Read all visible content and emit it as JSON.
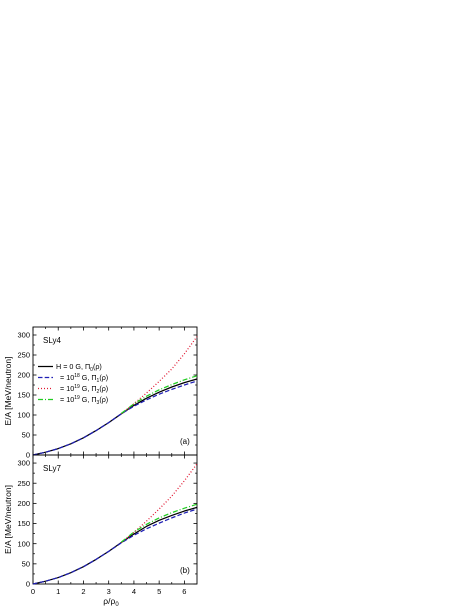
{
  "chart_data": [
    {
      "type": "line",
      "panel_tag": "(a)",
      "model_label": "SLy4",
      "ylabel": "E/A [MeV/neutron]",
      "xlim": [
        0,
        6.5
      ],
      "ylim": [
        0,
        320
      ],
      "x_ticks": [
        "0",
        "1",
        "2",
        "3",
        "4",
        "5",
        "6"
      ],
      "y_ticks": [
        "0",
        "50",
        "100",
        "150",
        "200",
        "250",
        "300"
      ],
      "legend": {
        "placement": "upper-left",
        "entries": [
          {
            "prefix": "H = 0 G, ",
            "pi": "Π",
            "sub": "0",
            "suffix": "(ρ)"
          },
          {
            "prefix": "= 10",
            "exp": "18",
            "mid": " G, Π",
            "sub": "1",
            "suffix": "(ρ)"
          },
          {
            "prefix": "= 10",
            "exp": "19",
            "mid": " G, Π",
            "sub": "2",
            "suffix": "(ρ)"
          },
          {
            "prefix": "= 10",
            "exp": "19",
            "mid": " G, Π",
            "sub": "3",
            "suffix": "(ρ)"
          }
        ]
      },
      "series": [
        {
          "color": "#000000",
          "dash": "solid",
          "x": [
            0,
            0.5,
            1,
            1.5,
            2,
            2.5,
            3,
            3.5,
            4,
            4.5,
            5,
            5.5,
            6,
            6.5
          ],
          "y": [
            0,
            7,
            16,
            28,
            43,
            61,
            81,
            103,
            124,
            142,
            157,
            170,
            181,
            190
          ]
        },
        {
          "color": "#1f1fb4",
          "dash": "dashed",
          "x": [
            0,
            0.5,
            1,
            1.5,
            2,
            2.5,
            3,
            3.5,
            4,
            4.5,
            5,
            5.5,
            6,
            6.5
          ],
          "y": [
            0,
            7,
            16,
            28,
            43,
            61,
            81,
            103,
            122,
            138,
            152,
            164,
            175,
            185
          ]
        },
        {
          "color": "#e0152f",
          "dash": "dotted",
          "x": [
            3.5,
            4,
            4.5,
            5,
            5.5,
            6,
            6.5
          ],
          "y": [
            103,
            128,
            155,
            184,
            215,
            253,
            296
          ]
        },
        {
          "color": "#22cc22",
          "dash": "dashdot",
          "x": [
            3.5,
            4,
            4.5,
            5,
            5.5,
            6,
            6.5
          ],
          "y": [
            104,
            128,
            147,
            163,
            176,
            188,
            198
          ]
        }
      ]
    },
    {
      "type": "line",
      "panel_tag": "(b)",
      "model_label": "SLy7",
      "ylabel": "E/A [MeV/neutron]",
      "xlabel": "ρ/ρ",
      "xlabel_sub": "0",
      "xlim": [
        0,
        6.5
      ],
      "ylim": [
        0,
        320
      ],
      "x_ticks": [
        "0",
        "1",
        "2",
        "3",
        "4",
        "5",
        "6"
      ],
      "y_ticks": [
        "0",
        "50",
        "100",
        "150",
        "200",
        "250",
        "300"
      ],
      "series": [
        {
          "color": "#000000",
          "dash": "solid",
          "x": [
            0,
            0.5,
            1,
            1.5,
            2,
            2.5,
            3,
            3.5,
            4,
            4.5,
            5,
            5.5,
            6,
            6.5
          ],
          "y": [
            0,
            7,
            16,
            28,
            43,
            61,
            81,
            103,
            124,
            143,
            158,
            170,
            181,
            190
          ]
        },
        {
          "color": "#1f1fb4",
          "dash": "dashed",
          "x": [
            0,
            0.5,
            1,
            1.5,
            2,
            2.5,
            3,
            3.5,
            4,
            4.5,
            5,
            5.5,
            6,
            6.5
          ],
          "y": [
            0,
            7,
            16,
            28,
            43,
            61,
            81,
            102,
            121,
            137,
            151,
            164,
            176,
            186
          ]
        },
        {
          "color": "#e0152f",
          "dash": "dotted",
          "x": [
            3.5,
            4,
            4.5,
            5,
            5.5,
            6,
            6.5
          ],
          "y": [
            103,
            128,
            156,
            186,
            218,
            256,
            298
          ]
        },
        {
          "color": "#22cc22",
          "dash": "dashdot",
          "x": [
            3.5,
            4,
            4.5,
            5,
            5.5,
            6,
            6.5
          ],
          "y": [
            104,
            129,
            148,
            164,
            177,
            188,
            198
          ]
        }
      ]
    }
  ]
}
